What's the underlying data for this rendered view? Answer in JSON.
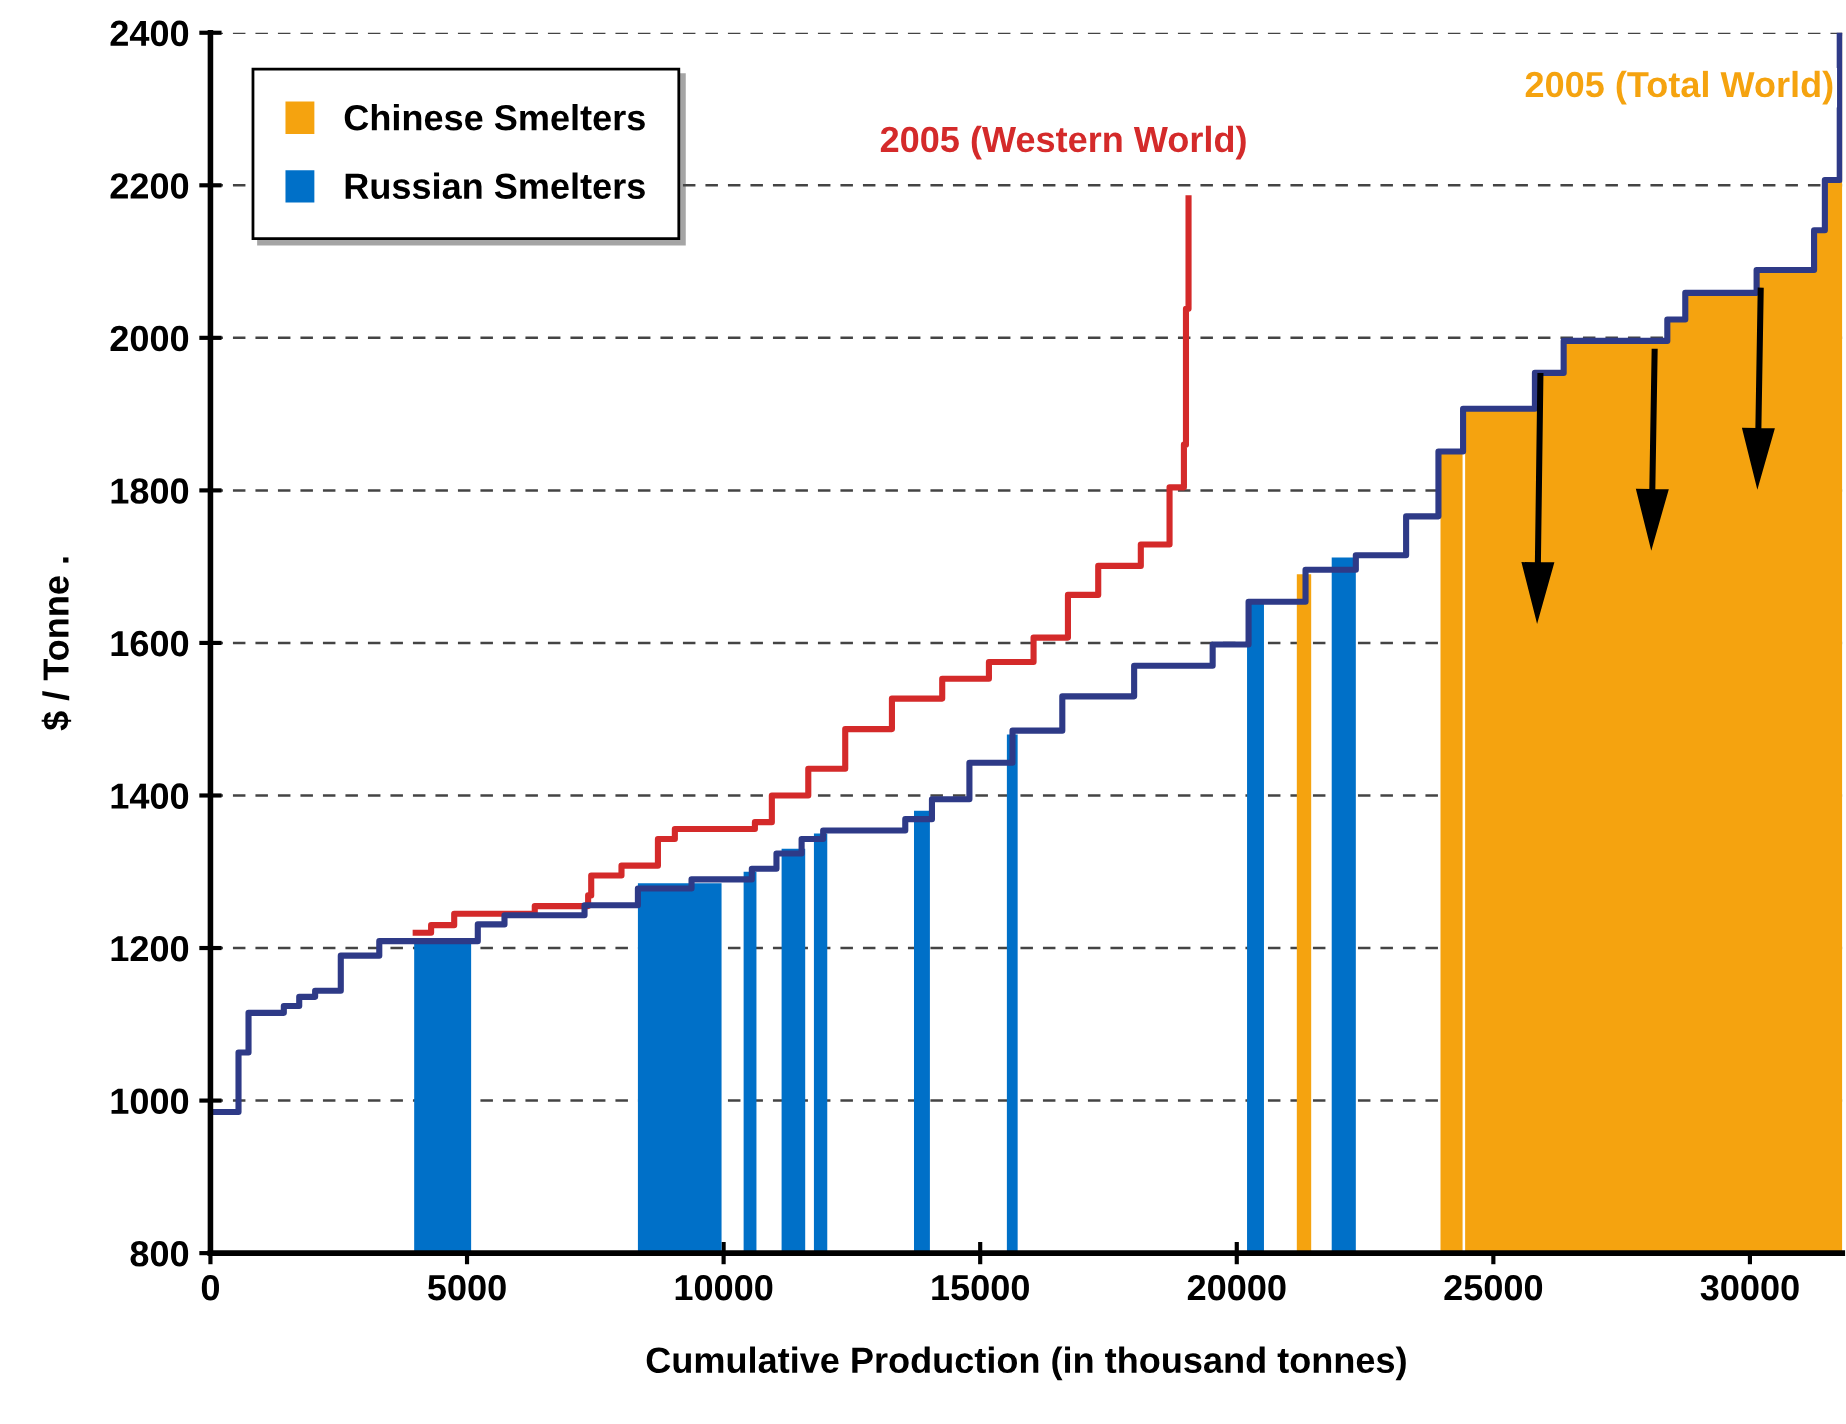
{
  "chart_data": {
    "type": "step",
    "xlabel": "Cumulative Production (in thousand tonnes)",
    "ylabel": "$ / Tonne .",
    "xlim": [
      0,
      31800
    ],
    "ylim": [
      800,
      2400
    ],
    "xticks": [
      0,
      5000,
      10000,
      15000,
      20000,
      25000,
      30000
    ],
    "yticks": [
      800,
      1000,
      1200,
      1400,
      1600,
      1800,
      2000,
      2200,
      2400
    ],
    "grid": "y",
    "legend": "top left",
    "series": [
      {
        "name": "Chinese Smelters",
        "type": "area",
        "color": "#f5a30f",
        "x": [
          21170,
          21450,
          21500,
          23970,
          24400,
          24420,
          24450,
          25810,
          26370,
          28390,
          28740,
          30130,
          31250,
          31460,
          31750,
          31800
        ],
        "values": [
          1690,
          1690,
          null,
          1851,
          1851,
          null,
          1907,
          1954,
          1996,
          2024,
          2059,
          2089,
          2141,
          2207,
          2400,
          2400
        ]
      },
      {
        "name": "Russian Smelters",
        "type": "area",
        "color": "#0070c8",
        "x": [
          3970,
          5080,
          5100,
          8330,
          9960,
          10000,
          10390,
          10640,
          10700,
          11130,
          11590,
          11650,
          11760,
          12020,
          12100,
          13710,
          14020,
          14100,
          15520,
          15730,
          15800,
          20200,
          20530,
          20600,
          21850,
          22320
        ],
        "values": [
          1210,
          1210,
          null,
          1285,
          1285,
          null,
          1300,
          1300,
          null,
          1330,
          1330,
          null,
          1350,
          1350,
          null,
          1380,
          1380,
          null,
          1480,
          1480,
          null,
          1655,
          1655,
          null,
          1712,
          1712
        ]
      },
      {
        "color": "#d42a2a",
        "x": [
          4000,
          4300,
          4750,
          6320,
          7360,
          7420,
          8010,
          8720,
          9050,
          10610,
          10940,
          11650,
          12370,
          13280,
          14260,
          15170,
          16040,
          16710,
          17300,
          18130,
          18690,
          18970,
          19010,
          19060
        ],
        "values": [
          1220,
          1230,
          1245,
          1255,
          1269,
          1295,
          1308,
          1343,
          1356,
          1365,
          1400,
          1435,
          1487,
          1527,
          1553,
          1575,
          1607,
          1663,
          1701,
          1729,
          1804,
          1860,
          2038,
          2183
        ]
      },
      {
        "color": "#2e3a87",
        "x": [
          0,
          547,
          742,
          1430,
          1730,
          2040,
          2540,
          3290,
          5210,
          5730,
          7290,
          8330,
          9375,
          10550,
          11030,
          11520,
          11940,
          13540,
          14060,
          14790,
          15630,
          16600,
          18000,
          19530,
          20230,
          21340,
          22320,
          23300,
          23930,
          24410,
          25810,
          26370,
          28390,
          28740,
          30130,
          31250,
          31460,
          31750,
          31800
        ],
        "values": [
          985,
          1063,
          1115,
          1124,
          1136,
          1144,
          1190,
          1209,
          1231,
          1243,
          1256,
          1278,
          1290,
          1304,
          1324,
          1343,
          1354,
          1369,
          1395,
          1443,
          1485,
          1530,
          1570,
          1598,
          1654,
          1696,
          1715,
          1766,
          1851,
          1907,
          1954,
          1996,
          2024,
          2059,
          2089,
          2141,
          2207,
          2400,
          2400
        ]
      }
    ],
    "annotations": [
      "2005 (Western World)",
      "2005 (Total World)"
    ]
  }
}
